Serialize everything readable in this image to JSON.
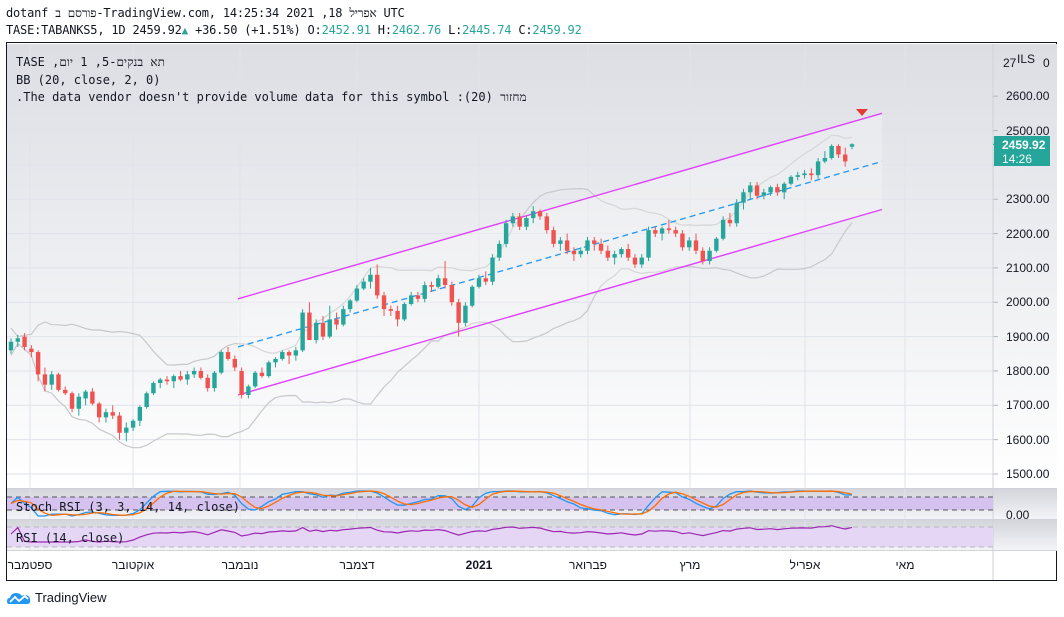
{
  "header": {
    "line1": "dotanf פורסם ב-TradingView.com, אפריל 18, 2021 14:25:34 UTC",
    "symbol": "TASE:TABANKS5, 1D",
    "last": "2459.92",
    "change": "+36.50 (+1.51%)",
    "o_label": "O:",
    "o": "2452.91",
    "h_label": "H:",
    "h": "2462.76",
    "l_label": "L:",
    "l": "2445.74",
    "c_label": "C:",
    "c": "2459.92"
  },
  "legend": {
    "title": "TASE ,תא בנקים-5, 1 יום",
    "bb": "BB (20, close, 2, 0)",
    "volume": ".The data vendor doesn't provide volume data for this symbol :(20) מחזור"
  },
  "price_axis": {
    "currency": "ILS",
    "partial_top_left": "27",
    "partial_top_right": "0",
    "ticks": [
      "2600.00",
      "2500.00",
      "2300.00",
      "2200.00",
      "2100.00",
      "2000.00",
      "1900.00",
      "1800.00",
      "1700.00",
      "1600.00",
      "1500.00"
    ],
    "last_price": "2459.92",
    "countdown": "14:26",
    "stoch_tick": "0.00"
  },
  "time_axis": {
    "labels": [
      "ספטמבר",
      "אוקטובר",
      "נובמבר",
      "דצמבר",
      "2021",
      "פברואר",
      "מרץ",
      "אפריל",
      "מאי"
    ]
  },
  "indicators": {
    "stoch_rsi": "Stoch RSI (3, 3, 14, 14, close)",
    "rsi": "RSI (14, close)"
  },
  "colors": {
    "up": "#26a69a",
    "down": "#ef5350",
    "channel": "#e040fb",
    "midline": "#2196f3",
    "bb": "#c8c8cc",
    "stoch_k": "#2196f3",
    "stoch_d": "#ff6d00",
    "rsi": "#9c27b0",
    "band_fill": "#d1c4e9"
  },
  "chart_data": {
    "type": "candlestick",
    "title": "TASE:TABANKS5, 1D",
    "ylabel": "ILS",
    "ylim": [
      1450,
      2730
    ],
    "yticks": [
      1500,
      1600,
      1700,
      1800,
      1900,
      2000,
      2100,
      2200,
      2300,
      2400,
      2500,
      2600
    ],
    "x_labels": [
      "ספטמבר",
      "אוקטובר",
      "נובמבר",
      "דצמבר",
      "2021",
      "פברואר",
      "מרץ",
      "אפריל",
      "מאי"
    ],
    "candles": [
      [
        1860,
        1895,
        1850,
        1885
      ],
      [
        1885,
        1905,
        1870,
        1895
      ],
      [
        1900,
        1910,
        1860,
        1870
      ],
      [
        1865,
        1875,
        1840,
        1855
      ],
      [
        1855,
        1860,
        1770,
        1790
      ],
      [
        1790,
        1810,
        1740,
        1760
      ],
      [
        1760,
        1800,
        1745,
        1790
      ],
      [
        1790,
        1795,
        1740,
        1745
      ],
      [
        1745,
        1755,
        1730,
        1735
      ],
      [
        1735,
        1740,
        1680,
        1690
      ],
      [
        1690,
        1735,
        1670,
        1725
      ],
      [
        1720,
        1745,
        1700,
        1740
      ],
      [
        1740,
        1750,
        1700,
        1705
      ],
      [
        1705,
        1710,
        1650,
        1665
      ],
      [
        1665,
        1690,
        1650,
        1680
      ],
      [
        1680,
        1700,
        1660,
        1670
      ],
      [
        1670,
        1680,
        1600,
        1620
      ],
      [
        1620,
        1650,
        1595,
        1635
      ],
      [
        1635,
        1660,
        1625,
        1655
      ],
      [
        1655,
        1700,
        1640,
        1695
      ],
      [
        1695,
        1740,
        1690,
        1735
      ],
      [
        1735,
        1770,
        1730,
        1765
      ],
      [
        1765,
        1780,
        1750,
        1775
      ],
      [
        1775,
        1785,
        1760,
        1770
      ],
      [
        1770,
        1790,
        1750,
        1785
      ],
      [
        1785,
        1800,
        1770,
        1775
      ],
      [
        1775,
        1800,
        1760,
        1790
      ],
      [
        1790,
        1810,
        1780,
        1800
      ],
      [
        1800,
        1810,
        1775,
        1780
      ],
      [
        1780,
        1790,
        1740,
        1750
      ],
      [
        1750,
        1800,
        1740,
        1795
      ],
      [
        1795,
        1860,
        1790,
        1855
      ],
      [
        1855,
        1870,
        1830,
        1835
      ],
      [
        1835,
        1845,
        1800,
        1810
      ],
      [
        1800,
        1810,
        1720,
        1730
      ],
      [
        1730,
        1760,
        1720,
        1755
      ],
      [
        1755,
        1800,
        1750,
        1795
      ],
      [
        1795,
        1810,
        1780,
        1785
      ],
      [
        1785,
        1830,
        1780,
        1825
      ],
      [
        1825,
        1840,
        1810,
        1835
      ],
      [
        1835,
        1860,
        1830,
        1855
      ],
      [
        1855,
        1860,
        1820,
        1845
      ],
      [
        1845,
        1870,
        1830,
        1860
      ],
      [
        1860,
        1980,
        1855,
        1970
      ],
      [
        1970,
        2000,
        1890,
        1890
      ],
      [
        1890,
        1950,
        1880,
        1940
      ],
      [
        1940,
        1960,
        1890,
        1900
      ],
      [
        1900,
        1990,
        1895,
        1950
      ],
      [
        1950,
        1970,
        1920,
        1935
      ],
      [
        1935,
        1990,
        1930,
        1980
      ],
      [
        1980,
        2010,
        1970,
        2005
      ],
      [
        2005,
        2050,
        2000,
        2040
      ],
      [
        2040,
        2070,
        2035,
        2060
      ],
      [
        2060,
        2100,
        2040,
        2080
      ],
      [
        2080,
        2110,
        2010,
        2020
      ],
      [
        2020,
        2030,
        1960,
        1980
      ],
      [
        1980,
        1990,
        1960,
        1975
      ],
      [
        1975,
        1990,
        1930,
        1950
      ],
      [
        1950,
        2000,
        1945,
        1995
      ],
      [
        1995,
        2030,
        1990,
        2020
      ],
      [
        2020,
        2030,
        2000,
        2010
      ],
      [
        2010,
        2060,
        2000,
        2050
      ],
      [
        2050,
        2060,
        2030,
        2045
      ],
      [
        2045,
        2080,
        2040,
        2070
      ],
      [
        2070,
        2120,
        2040,
        2050
      ],
      [
        2050,
        2060,
        1990,
        2000
      ],
      [
        2000,
        2010,
        1900,
        1940
      ],
      [
        1940,
        2000,
        1930,
        1990
      ],
      [
        1990,
        2050,
        1985,
        2045
      ],
      [
        2045,
        2080,
        2040,
        2070
      ],
      [
        2070,
        2090,
        2050,
        2060
      ],
      [
        2060,
        2140,
        2050,
        2130
      ],
      [
        2130,
        2180,
        2120,
        2170
      ],
      [
        2170,
        2240,
        2160,
        2230
      ],
      [
        2230,
        2260,
        2220,
        2250
      ],
      [
        2250,
        2260,
        2210,
        2220
      ],
      [
        2220,
        2250,
        2210,
        2245
      ],
      [
        2245,
        2280,
        2230,
        2265
      ],
      [
        2265,
        2270,
        2240,
        2250
      ],
      [
        2250,
        2260,
        2200,
        2210
      ],
      [
        2210,
        2220,
        2160,
        2170
      ],
      [
        2170,
        2190,
        2150,
        2180
      ],
      [
        2180,
        2200,
        2140,
        2150
      ],
      [
        2150,
        2160,
        2120,
        2140
      ],
      [
        2140,
        2160,
        2130,
        2150
      ],
      [
        2150,
        2190,
        2140,
        2180
      ],
      [
        2180,
        2190,
        2150,
        2170
      ],
      [
        2170,
        2185,
        2140,
        2150
      ],
      [
        2150,
        2165,
        2120,
        2130
      ],
      [
        2130,
        2150,
        2110,
        2140
      ],
      [
        2140,
        2160,
        2130,
        2155
      ],
      [
        2155,
        2170,
        2120,
        2130
      ],
      [
        2130,
        2140,
        2100,
        2110
      ],
      [
        2110,
        2140,
        2100,
        2130
      ],
      [
        2130,
        2220,
        2120,
        2210
      ],
      [
        2210,
        2220,
        2190,
        2200
      ],
      [
        2200,
        2220,
        2180,
        2215
      ],
      [
        2215,
        2240,
        2200,
        2210
      ],
      [
        2210,
        2220,
        2190,
        2200
      ],
      [
        2200,
        2210,
        2150,
        2160
      ],
      [
        2160,
        2190,
        2150,
        2180
      ],
      [
        2180,
        2200,
        2140,
        2150
      ],
      [
        2150,
        2160,
        2110,
        2120
      ],
      [
        2120,
        2160,
        2110,
        2150
      ],
      [
        2150,
        2190,
        2145,
        2185
      ],
      [
        2185,
        2250,
        2180,
        2240
      ],
      [
        2240,
        2260,
        2220,
        2230
      ],
      [
        2230,
        2300,
        2220,
        2290
      ],
      [
        2290,
        2330,
        2270,
        2320
      ],
      [
        2320,
        2350,
        2300,
        2340
      ],
      [
        2340,
        2350,
        2300,
        2310
      ],
      [
        2310,
        2330,
        2300,
        2320
      ],
      [
        2320,
        2340,
        2310,
        2335
      ],
      [
        2335,
        2345,
        2310,
        2320
      ],
      [
        2320,
        2350,
        2300,
        2345
      ],
      [
        2345,
        2370,
        2340,
        2365
      ],
      [
        2365,
        2380,
        2355,
        2370
      ],
      [
        2370,
        2385,
        2360,
        2375
      ],
      [
        2375,
        2390,
        2355,
        2370
      ],
      [
        2370,
        2420,
        2360,
        2410
      ],
      [
        2410,
        2440,
        2405,
        2420
      ],
      [
        2420,
        2460,
        2415,
        2455
      ],
      [
        2455,
        2460,
        2420,
        2430
      ],
      [
        2430,
        2450,
        2395,
        2410
      ],
      [
        2452.91,
        2462.76,
        2445.74,
        2459.92
      ]
    ],
    "bollinger": {
      "period": 20,
      "mult": 2,
      "source": "close"
    },
    "channel": {
      "upper": [
        [
          1800,
          2010
        ],
        [
          2625,
          2550
        ]
      ],
      "middle": [
        [
          1800,
          1870
        ],
        [
          2625,
          2410
        ]
      ],
      "lower": [
        [
          1800,
          1730
        ],
        [
          2625,
          2270
        ]
      ]
    },
    "indicators": [
      {
        "name": "Stoch RSI (3, 3, 14, 14, close)",
        "bands": [
          20,
          80
        ]
      },
      {
        "name": "RSI (14, close)",
        "bands": [
          30,
          70
        ]
      }
    ]
  }
}
